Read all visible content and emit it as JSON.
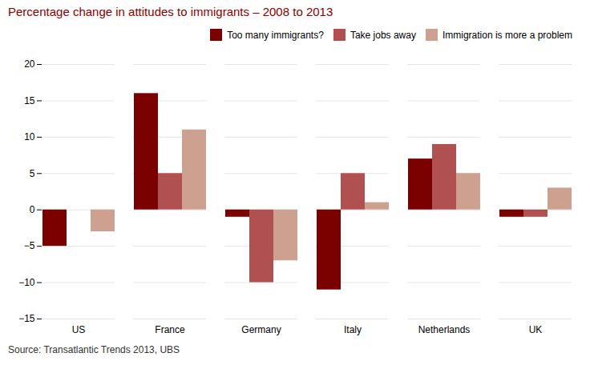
{
  "chart_data": {
    "type": "bar",
    "title": "Percentage change in attitudes to immigrants – 2008 to 2013",
    "caption": "Source: Transatlantic Trends 2013, UBS",
    "categories": [
      "US",
      "France",
      "Germany",
      "Italy",
      "Netherlands",
      "UK"
    ],
    "series": [
      {
        "name": "Too many immigrants?",
        "color": "#7B0000",
        "values": [
          -5,
          16,
          -1,
          -11,
          7,
          -1
        ]
      },
      {
        "name": "Take jobs away",
        "color": "#B05050",
        "values": [
          0,
          5,
          -10,
          5,
          9,
          -1
        ]
      },
      {
        "name": "Immigration is more a problem",
        "color": "#CDA090",
        "values": [
          -3,
          11,
          -7,
          1,
          5,
          3
        ]
      }
    ],
    "ylim": [
      -15,
      20
    ],
    "yticks": [
      -15,
      -10,
      -5,
      0,
      5,
      10,
      15,
      20
    ],
    "grid": true,
    "legend": "upper right"
  }
}
